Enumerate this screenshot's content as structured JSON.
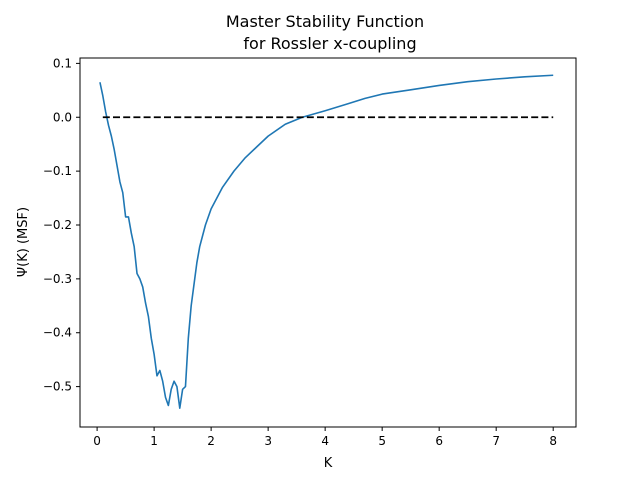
{
  "chart_data": {
    "type": "line",
    "title_line1": "Master Stability Function",
    "title_line2": "for Rossler x-coupling",
    "xlabel": "K",
    "ylabel": "Ψ(K) (MSF)",
    "xlim": [
      -0.3,
      8.4
    ],
    "ylim": [
      -0.575,
      0.11
    ],
    "xticks": [
      0,
      1,
      2,
      3,
      4,
      5,
      6,
      7,
      8
    ],
    "yticks": [
      0.1,
      0.0,
      -0.1,
      -0.2,
      -0.3,
      -0.4,
      -0.5
    ],
    "ytick_labels": [
      "0.1",
      "0.0",
      "−0.1",
      "−0.2",
      "−0.3",
      "−0.4",
      "−0.5"
    ],
    "grid": false,
    "series": [
      {
        "color": "#1f77b4",
        "style": "solid",
        "x": [
          0.05,
          0.1,
          0.15,
          0.2,
          0.25,
          0.3,
          0.35,
          0.4,
          0.45,
          0.5,
          0.55,
          0.6,
          0.65,
          0.7,
          0.75,
          0.8,
          0.85,
          0.9,
          0.95,
          1.0,
          1.05,
          1.1,
          1.15,
          1.2,
          1.25,
          1.3,
          1.35,
          1.4,
          1.45,
          1.5,
          1.55,
          1.6,
          1.65,
          1.7,
          1.75,
          1.8,
          1.9,
          2.0,
          2.2,
          2.4,
          2.6,
          2.8,
          3.0,
          3.3,
          3.6,
          4.0,
          4.4,
          4.7,
          5.0,
          5.5,
          6.0,
          6.5,
          7.0,
          7.5,
          8.0
        ],
        "y": [
          0.065,
          0.04,
          0.01,
          -0.015,
          -0.035,
          -0.06,
          -0.09,
          -0.12,
          -0.14,
          -0.185,
          -0.185,
          -0.215,
          -0.24,
          -0.29,
          -0.3,
          -0.315,
          -0.345,
          -0.37,
          -0.41,
          -0.44,
          -0.48,
          -0.47,
          -0.49,
          -0.52,
          -0.535,
          -0.505,
          -0.49,
          -0.5,
          -0.54,
          -0.505,
          -0.5,
          -0.41,
          -0.35,
          -0.31,
          -0.27,
          -0.24,
          -0.2,
          -0.17,
          -0.13,
          -0.1,
          -0.075,
          -0.055,
          -0.035,
          -0.013,
          0.0,
          0.012,
          0.025,
          0.035,
          0.043,
          0.051,
          0.059,
          0.066,
          0.071,
          0.075,
          0.078
        ]
      },
      {
        "color": "#000000",
        "style": "dashed",
        "x": [
          0.1,
          8.0
        ],
        "y": [
          0.0,
          0.0
        ]
      }
    ]
  }
}
